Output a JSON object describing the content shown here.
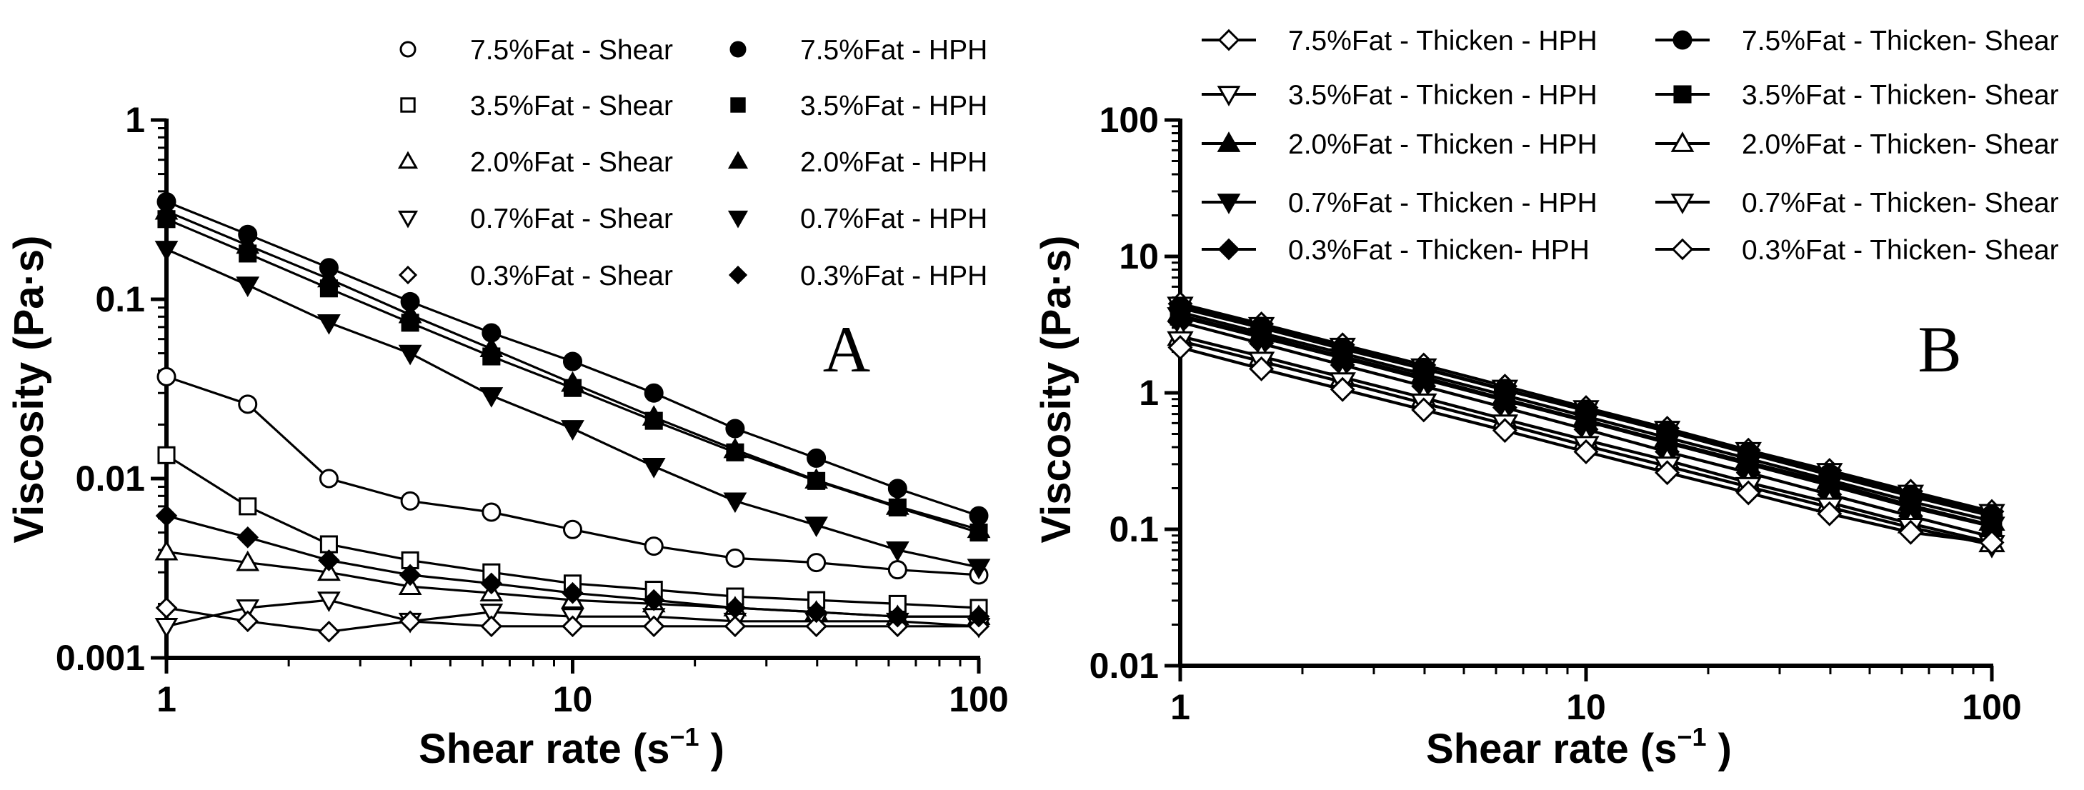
{
  "chart_data": [
    {
      "panel": "A",
      "type": "line",
      "scale": "log-log",
      "xlabel": "Shear rate (s",
      "xlabel_sup": "−1",
      "xlabel_end": " )",
      "ylabel": "Viscosity (Pa·s)",
      "xlim": [
        1,
        100
      ],
      "ylim": [
        0.001,
        1
      ],
      "x_ticks": [
        "1",
        "10",
        "100"
      ],
      "y_ticks": [
        "0.001",
        "0.01",
        "0.1",
        "1"
      ],
      "x": [
        1,
        1.585,
        2.512,
        3.981,
        6.31,
        10,
        15.85,
        25.12,
        39.81,
        63.1,
        100
      ],
      "series": [
        {
          "name": "7.5%Fat - Shear",
          "marker": "circle",
          "filled": false,
          "values": [
            0.037,
            0.026,
            0.01,
            0.0075,
            0.0065,
            0.0052,
            0.0042,
            0.0036,
            0.0034,
            0.0031,
            0.0029
          ]
        },
        {
          "name": "3.5%Fat - Shear",
          "marker": "square",
          "filled": false,
          "values": [
            0.0135,
            0.007,
            0.0043,
            0.0035,
            0.003,
            0.0026,
            0.0024,
            0.0022,
            0.0021,
            0.002,
            0.0019
          ]
        },
        {
          "name": "2.0%Fat - Shear",
          "marker": "triangle-up",
          "filled": false,
          "values": [
            0.0039,
            0.0034,
            0.003,
            0.0025,
            0.0023,
            0.0021,
            0.002,
            0.0019,
            0.0018,
            0.0017,
            0.0017
          ]
        },
        {
          "name": "0.7%Fat - Shear",
          "marker": "triangle-down",
          "filled": false,
          "values": [
            0.0015,
            0.0019,
            0.0021,
            0.0016,
            0.0018,
            0.0017,
            0.0017,
            0.0016,
            0.0016,
            0.0016,
            0.0015
          ]
        },
        {
          "name": "0.3%Fat - Shear",
          "marker": "diamond",
          "filled": false,
          "values": [
            0.0019,
            0.0016,
            0.0014,
            0.0016,
            0.0015,
            0.0015,
            0.0015,
            0.0015,
            0.0015,
            0.0015,
            0.0015
          ]
        },
        {
          "name": "7.5%Fat - HPH",
          "marker": "circle",
          "filled": true,
          "values": [
            0.35,
            0.23,
            0.15,
            0.097,
            0.065,
            0.045,
            0.03,
            0.019,
            0.013,
            0.0088,
            0.0062
          ]
        },
        {
          "name": "3.5%Fat - HPH",
          "marker": "square",
          "filled": true,
          "values": [
            0.28,
            0.18,
            0.115,
            0.074,
            0.048,
            0.032,
            0.021,
            0.014,
            0.0097,
            0.0069,
            0.005
          ]
        },
        {
          "name": "2.0%Fat - HPH",
          "marker": "triangle-up",
          "filled": true,
          "values": [
            0.31,
            0.2,
            0.13,
            0.082,
            0.053,
            0.034,
            0.022,
            0.0145,
            0.0098,
            0.007,
            0.0052
          ]
        },
        {
          "name": "0.7%Fat - HPH",
          "marker": "triangle-down",
          "filled": true,
          "values": [
            0.19,
            0.12,
            0.074,
            0.05,
            0.029,
            0.019,
            0.0117,
            0.0075,
            0.0055,
            0.004,
            0.0032
          ]
        },
        {
          "name": "0.3%Fat - HPH",
          "marker": "diamond",
          "filled": true,
          "values": [
            0.0062,
            0.0047,
            0.0035,
            0.0029,
            0.0026,
            0.0023,
            0.0021,
            0.0019,
            0.0018,
            0.0017,
            0.0017
          ]
        }
      ],
      "legend_columns": [
        [
          "7.5%Fat - Shear",
          "3.5%Fat - Shear",
          "2.0%Fat - Shear",
          "0.7%Fat - Shear",
          "0.3%Fat - Shear"
        ],
        [
          "7.5%Fat - HPH",
          "3.5%Fat - HPH",
          "2.0%Fat - HPH",
          "0.7%Fat - HPH",
          "0.3%Fat - HPH"
        ]
      ],
      "legend_position": "top-right",
      "annotation": "A"
    },
    {
      "panel": "B",
      "type": "line",
      "scale": "log-log",
      "xlabel": "Shear rate (s",
      "xlabel_sup": "−1",
      "xlabel_end": " )",
      "ylabel": "Viscosity (Pa·s)",
      "xlim": [
        1,
        100
      ],
      "ylim": [
        0.01,
        100
      ],
      "x_ticks": [
        "1",
        "10",
        "100"
      ],
      "y_ticks": [
        "0.01",
        "0.1",
        "1",
        "10",
        "100"
      ],
      "x": [
        1,
        1.585,
        2.512,
        3.981,
        6.31,
        10,
        15.85,
        25.12,
        39.81,
        63.1,
        100
      ],
      "series": [
        {
          "name": "7.5%Fat - Thicken - HPH",
          "marker": "diamond",
          "filled": false,
          "values": [
            4.5,
            3.2,
            2.25,
            1.6,
            1.12,
            0.78,
            0.55,
            0.38,
            0.27,
            0.19,
            0.135
          ]
        },
        {
          "name": "3.5%Fat - Thicken - HPH",
          "marker": "triangle-down",
          "filled": false,
          "values": [
            4.3,
            3.05,
            2.15,
            1.52,
            1.06,
            0.75,
            0.53,
            0.37,
            0.26,
            0.18,
            0.13
          ]
        },
        {
          "name": "2.0%Fat - Thicken - HPH",
          "marker": "triangle-up",
          "filled": true,
          "values": [
            3.9,
            2.75,
            1.95,
            1.37,
            0.96,
            0.67,
            0.47,
            0.33,
            0.23,
            0.16,
            0.115
          ]
        },
        {
          "name": "0.7%Fat - Thicken - HPH",
          "marker": "triangle-down",
          "filled": true,
          "values": [
            3.6,
            2.55,
            1.8,
            1.26,
            0.88,
            0.62,
            0.43,
            0.3,
            0.21,
            0.145,
            0.105
          ]
        },
        {
          "name": "0.3%Fat  - Thicken- HPH",
          "marker": "diamond",
          "filled": true,
          "values": [
            3.3,
            2.3,
            1.6,
            1.12,
            0.78,
            0.54,
            0.37,
            0.26,
            0.18,
            0.125,
            0.088
          ]
        },
        {
          "name": "7.5%Fat  - Thicken- Shear",
          "marker": "circle",
          "filled": true,
          "values": [
            4.2,
            3.0,
            2.1,
            1.5,
            1.05,
            0.74,
            0.52,
            0.36,
            0.25,
            0.175,
            0.125
          ]
        },
        {
          "name": "3.5%Fat  - Thicken- Shear",
          "marker": "square",
          "filled": true,
          "values": [
            3.7,
            2.62,
            1.85,
            1.3,
            0.9,
            0.63,
            0.44,
            0.31,
            0.22,
            0.15,
            0.107
          ]
        },
        {
          "name": "2.0%Fat  - Thicken- Shear",
          "marker": "triangle-up",
          "filled": false,
          "values": [
            2.6,
            1.85,
            1.3,
            0.92,
            0.64,
            0.45,
            0.32,
            0.22,
            0.157,
            0.11,
            0.08
          ]
        },
        {
          "name": "0.7%Fat  - Thicken- Shear",
          "marker": "triangle-down",
          "filled": false,
          "values": [
            2.4,
            1.7,
            1.2,
            0.84,
            0.59,
            0.41,
            0.29,
            0.205,
            0.145,
            0.103,
            0.077
          ]
        },
        {
          "name": "0.3%Fat  - Thicken- Shear",
          "marker": "diamond",
          "filled": false,
          "values": [
            2.15,
            1.5,
            1.06,
            0.75,
            0.53,
            0.37,
            0.26,
            0.185,
            0.13,
            0.095,
            0.08
          ]
        }
      ],
      "legend_columns": [
        [
          "7.5%Fat - Thicken - HPH",
          "3.5%Fat - Thicken - HPH",
          "2.0%Fat - Thicken - HPH",
          "0.7%Fat - Thicken - HPH",
          "0.3%Fat  - Thicken- HPH"
        ],
        [
          "7.5%Fat  - Thicken- Shear",
          "3.5%Fat  - Thicken- Shear",
          "2.0%Fat  - Thicken- Shear",
          "0.7%Fat  - Thicken- Shear",
          "0.3%Fat  - Thicken- Shear"
        ]
      ],
      "legend_position": "top",
      "annotation": "B"
    }
  ]
}
